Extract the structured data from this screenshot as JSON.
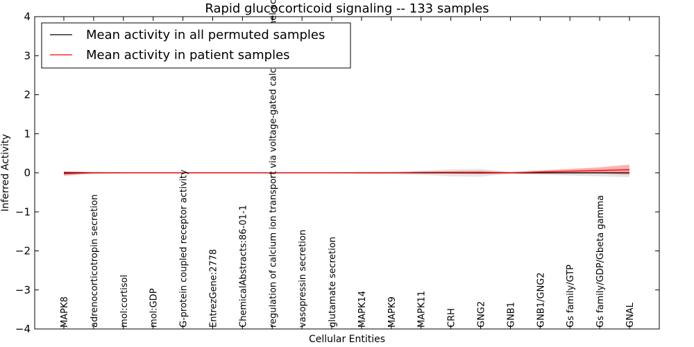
{
  "chart_data": {
    "type": "line",
    "title": "Rapid glucocorticoid signaling -- 133 samples",
    "xlabel": "Cellular Entities",
    "ylabel": "Inferred Activity",
    "ylim": [
      -4,
      4
    ],
    "yticks": [
      "−4",
      "−3",
      "−2",
      "−1",
      "0",
      "1",
      "2",
      "3",
      "4"
    ],
    "yticks_values": [
      -4,
      -3,
      -2,
      -1,
      0,
      1,
      2,
      3,
      4
    ],
    "grid": false,
    "legend_position": "top-left",
    "categories": [
      "MAPK8",
      "adrenocorticotropin secretion",
      "mol:cortisol",
      "mol:GDP",
      "G-protein coupled receptor activity",
      "EntrezGene:2778",
      "ChemicalAbstracts:86-01-1",
      "regulation of calcium ion transport via voltage-gated calcium channel activity",
      "vasopressin secretion",
      "glutamate secretion",
      "MAPK14",
      "MAPK9",
      "MAPK11",
      "CRH",
      "GNG2",
      "GNB1",
      "GNB1/GNG2",
      "Gs family/GTP",
      "Gs family/GDP/Gbeta gamma",
      "GNAL"
    ],
    "series": [
      {
        "name": "Mean activity in all permuted samples",
        "color": "#000000",
        "band_color": "#999999",
        "values": [
          0,
          0,
          0,
          0,
          0,
          0,
          0,
          0,
          0,
          0,
          0,
          0,
          0,
          0,
          0,
          0,
          0,
          0,
          0,
          0
        ],
        "band": [
          0.04,
          0.04,
          0.01,
          0.01,
          0.01,
          0.01,
          0.01,
          0.01,
          0.01,
          0.01,
          0.03,
          0.04,
          0.05,
          0.09,
          0.1,
          0.02,
          0.05,
          0.07,
          0.09,
          0.11
        ]
      },
      {
        "name": "Mean activity in patient samples",
        "color": "#ff0000",
        "band_color": "#ff0000",
        "values": [
          -0.02,
          0,
          0,
          0,
          0,
          0,
          0,
          0,
          0,
          0,
          0,
          0,
          0.01,
          0.01,
          0.01,
          0,
          0.02,
          0.04,
          0.06,
          0.08
        ],
        "band": [
          0.06,
          0.01,
          0.005,
          0.005,
          0.005,
          0.005,
          0.005,
          0.005,
          0.005,
          0.005,
          0.01,
          0.01,
          0.02,
          0.03,
          0.04,
          0.02,
          0.04,
          0.06,
          0.08,
          0.13
        ]
      }
    ]
  }
}
